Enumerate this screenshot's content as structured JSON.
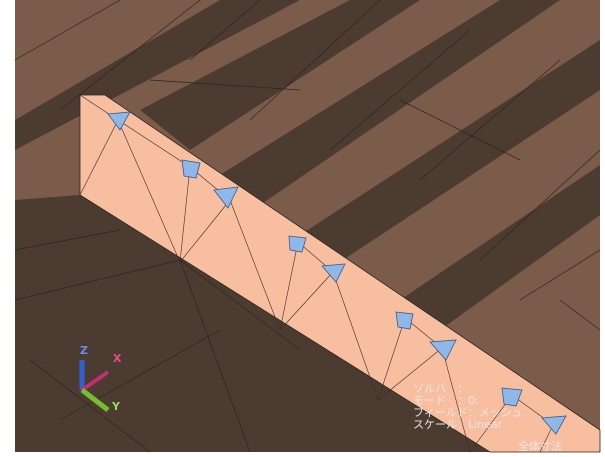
{
  "triad": {
    "z": "Z",
    "x": "X",
    "y": "Y"
  },
  "info": {
    "lines": [
      "ソルバ　：",
      "モード　：0:",
      "フィールド：メッシュ",
      "スケール：Linear"
    ],
    "footer": "全体寸法"
  }
}
